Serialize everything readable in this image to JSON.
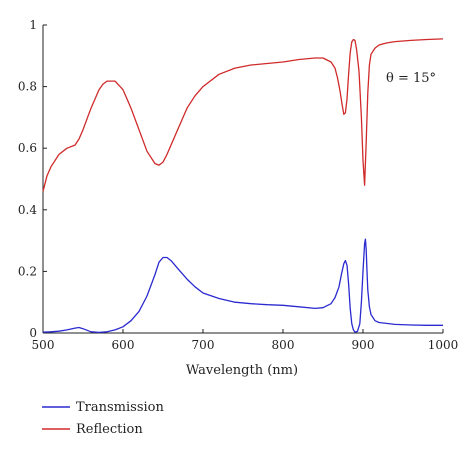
{
  "chart_data": {
    "type": "line",
    "xlabel": "Wavelength (nm)",
    "ylabel": "",
    "xlim": [
      500,
      1000
    ],
    "ylim": [
      0,
      1
    ],
    "xticks": [
      "500",
      "600",
      "700",
      "800",
      "900",
      "1000"
    ],
    "yticks": [
      "0",
      "0.2",
      "0.4",
      "0.6",
      "0.8",
      "1"
    ],
    "grid": false,
    "legend_position": "bottom-left, below plot",
    "annotation": "θ = 15°",
    "series": [
      {
        "name": "Transmission",
        "color": "#2a2ad0",
        "x": [
          500,
          510,
          520,
          530,
          540,
          545,
          550,
          560,
          570,
          580,
          590,
          600,
          610,
          620,
          630,
          640,
          645,
          650,
          655,
          660,
          670,
          680,
          690,
          700,
          720,
          740,
          760,
          780,
          800,
          820,
          840,
          850,
          860,
          865,
          870,
          873,
          876,
          878,
          880,
          882,
          884,
          886,
          888,
          890,
          893,
          896,
          898,
          900,
          902,
          903,
          904,
          905,
          906,
          908,
          910,
          915,
          920,
          940,
          960,
          980,
          1000
        ],
        "y": [
          0.003,
          0.004,
          0.006,
          0.01,
          0.016,
          0.018,
          0.014,
          0.004,
          0.002,
          0.004,
          0.01,
          0.02,
          0.04,
          0.07,
          0.12,
          0.19,
          0.23,
          0.245,
          0.245,
          0.235,
          0.205,
          0.175,
          0.15,
          0.13,
          0.112,
          0.1,
          0.095,
          0.092,
          0.09,
          0.085,
          0.08,
          0.082,
          0.095,
          0.115,
          0.15,
          0.19,
          0.225,
          0.235,
          0.22,
          0.16,
          0.08,
          0.03,
          0.01,
          0.003,
          0.005,
          0.03,
          0.1,
          0.2,
          0.29,
          0.305,
          0.27,
          0.2,
          0.14,
          0.085,
          0.06,
          0.04,
          0.034,
          0.028,
          0.026,
          0.025,
          0.025
        ]
      },
      {
        "name": "Reflection",
        "color": "#d02a2a",
        "x": [
          500,
          505,
          510,
          520,
          530,
          540,
          545,
          550,
          560,
          570,
          575,
          580,
          590,
          600,
          610,
          620,
          630,
          640,
          645,
          650,
          655,
          660,
          670,
          680,
          690,
          700,
          720,
          740,
          760,
          780,
          800,
          820,
          840,
          850,
          860,
          865,
          868,
          871,
          874,
          876,
          878,
          880,
          882,
          884,
          886,
          888,
          890,
          892,
          895,
          898,
          900,
          902,
          904,
          906,
          908,
          910,
          915,
          920,
          930,
          940,
          960,
          980,
          1000
        ],
        "y": [
          0.46,
          0.51,
          0.54,
          0.58,
          0.6,
          0.61,
          0.63,
          0.66,
          0.73,
          0.79,
          0.808,
          0.818,
          0.818,
          0.79,
          0.73,
          0.66,
          0.59,
          0.55,
          0.545,
          0.555,
          0.58,
          0.61,
          0.67,
          0.73,
          0.77,
          0.8,
          0.84,
          0.86,
          0.87,
          0.875,
          0.88,
          0.888,
          0.893,
          0.893,
          0.88,
          0.86,
          0.83,
          0.79,
          0.74,
          0.71,
          0.715,
          0.76,
          0.84,
          0.91,
          0.945,
          0.953,
          0.95,
          0.92,
          0.85,
          0.7,
          0.56,
          0.48,
          0.62,
          0.78,
          0.87,
          0.905,
          0.925,
          0.935,
          0.942,
          0.946,
          0.95,
          0.953,
          0.955
        ]
      }
    ]
  }
}
